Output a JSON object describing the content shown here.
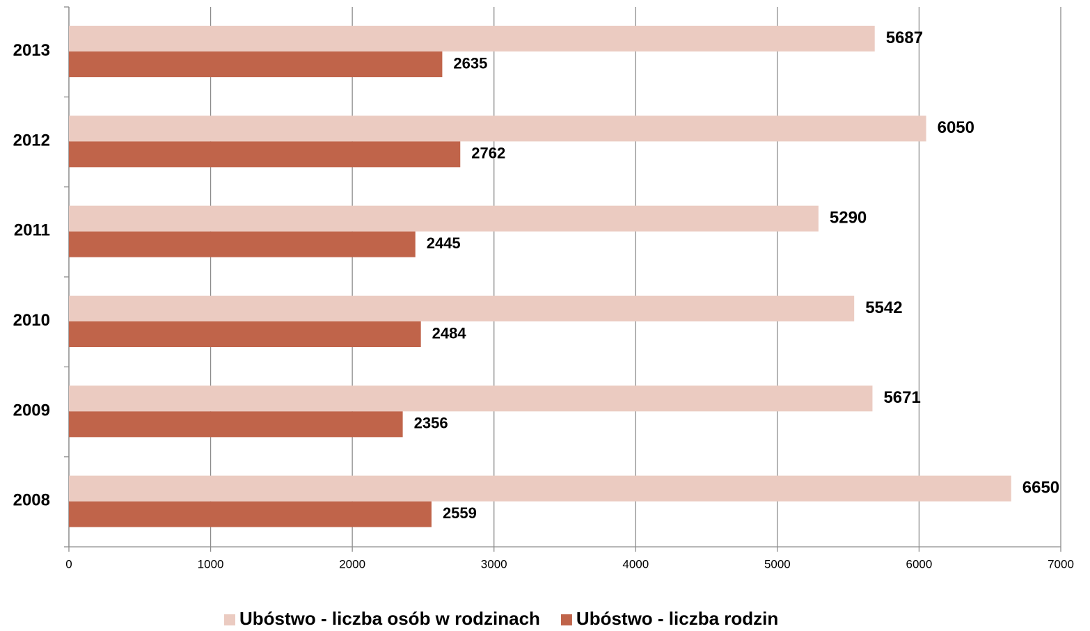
{
  "chart_data": {
    "type": "hbar",
    "categories": [
      "2013",
      "2012",
      "2011",
      "2010",
      "2009",
      "2008"
    ],
    "series": [
      {
        "name": "Ubóstwo - liczba osób w rodzinach",
        "color": "#ebcbc1",
        "values": [
          5687,
          6050,
          5290,
          5542,
          5671,
          6650
        ]
      },
      {
        "name": "Ubóstwo - liczba rodzin",
        "color": "#c0644a",
        "values": [
          2635,
          2762,
          2445,
          2484,
          2356,
          2559
        ]
      }
    ],
    "xlim": [
      0,
      7000
    ],
    "xticks": [
      0,
      1000,
      2000,
      3000,
      4000,
      5000,
      6000,
      7000
    ],
    "grid": true,
    "legend": "bottom"
  }
}
